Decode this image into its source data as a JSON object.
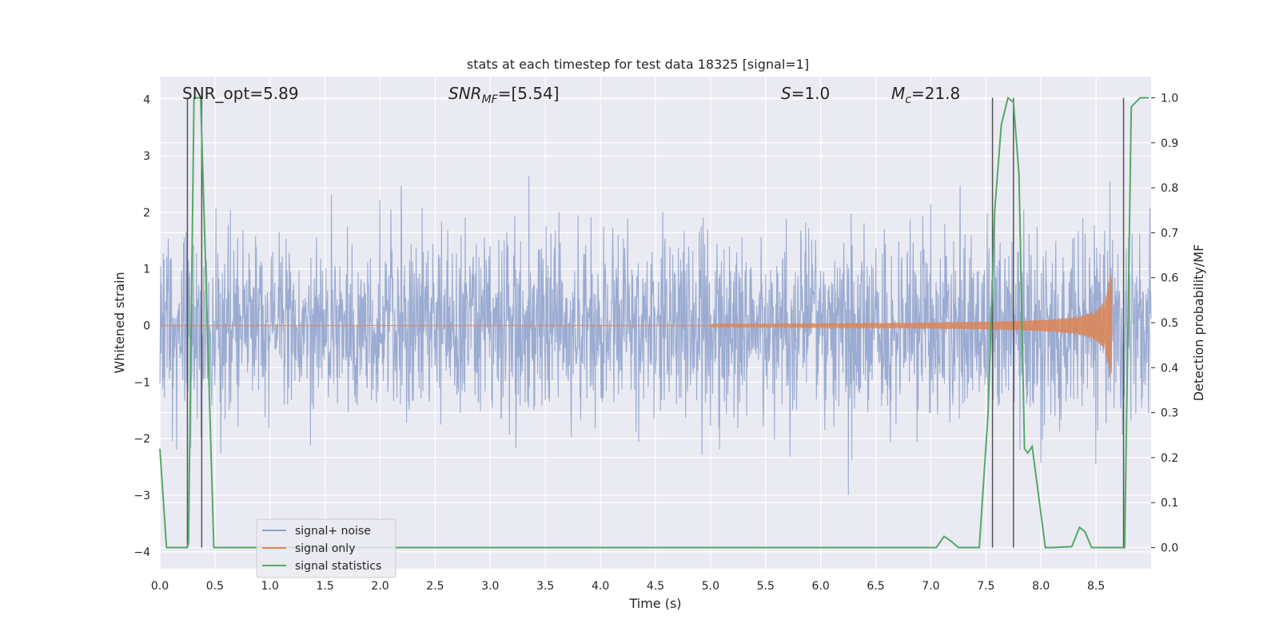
{
  "chart_data": {
    "type": "line",
    "title": "stats at each timestep for test data 18325 [signal=1]",
    "xlabel": "Time (s)",
    "ylabel_left": "Whitened strain",
    "ylabel_right": "Detection probability/MF",
    "xlim": [
      0,
      9.0
    ],
    "ylim_left": [
      -4.3,
      4.4
    ],
    "ylim_right": [
      -0.047,
      1.047
    ],
    "x_ticks": [
      0.0,
      0.5,
      1.0,
      1.5,
      2.0,
      2.5,
      3.0,
      3.5,
      4.0,
      4.5,
      5.0,
      5.5,
      6.0,
      6.5,
      7.0,
      7.5,
      8.0,
      8.5
    ],
    "x_tick_labels": [
      "0.0",
      "0.5",
      "1.0",
      "1.5",
      "2.0",
      "2.5",
      "3.0",
      "3.5",
      "4.0",
      "4.5",
      "5.0",
      "5.5",
      "6.0",
      "6.5",
      "7.0",
      "7.5",
      "8.0",
      "8.5"
    ],
    "y_left_ticks": [
      -4,
      -3,
      -2,
      -1,
      0,
      1,
      2,
      3,
      4
    ],
    "y_left_tick_labels": [
      "−4",
      "−3",
      "−2",
      "−1",
      "0",
      "1",
      "2",
      "3",
      "4"
    ],
    "y_right_ticks": [
      0.0,
      0.1,
      0.2,
      0.3,
      0.4,
      0.5,
      0.6,
      0.7,
      0.8,
      0.9,
      1.0
    ],
    "y_right_tick_labels": [
      "0.0",
      "0.1",
      "0.2",
      "0.3",
      "0.4",
      "0.5",
      "0.6",
      "0.7",
      "0.8",
      "0.9",
      "1.0"
    ],
    "annotations": {
      "snr_opt": "SNR_opt=5.89",
      "snr_mf_main": "SNR",
      "snr_mf_sub": "MF",
      "snr_mf_val": "=[5.54]",
      "s_main": "S",
      "s_val": "=1.0",
      "mc_main": "M",
      "mc_sub": "c",
      "mc_val": "=21.8"
    },
    "series": [
      {
        "name": "signal+ noise",
        "color": "#8da0cb",
        "description": "whitened noisy strain, approx std 0.75, spikes up to ~3.6, x from 0 to 9.0"
      },
      {
        "name": "signal only",
        "color": "#dd8452",
        "chirp": {
          "start": 5.0,
          "end": 8.65,
          "amp_start": 0.03,
          "amp_peak": 1.0
        }
      },
      {
        "name": "signal statistics",
        "color": "#55a868",
        "x": [
          0.0,
          0.06,
          0.25,
          0.26,
          0.31,
          0.37,
          0.49,
          0.9,
          7.05,
          7.12,
          7.18,
          7.25,
          7.44,
          7.52,
          7.58,
          7.64,
          7.7,
          7.75,
          7.8,
          7.85,
          7.88,
          7.92,
          8.04,
          8.1,
          8.28,
          8.35,
          8.4,
          8.46,
          8.7,
          8.76,
          8.82,
          8.9,
          8.98
        ],
        "y": [
          0.22,
          0.0,
          0.0,
          0.01,
          1.0,
          1.0,
          0.0,
          0.0,
          0.0,
          0.025,
          0.015,
          0.0,
          0.0,
          0.3,
          0.75,
          0.94,
          1.0,
          0.99,
          0.83,
          0.22,
          0.21,
          0.225,
          0.0,
          0.0,
          0.002,
          0.045,
          0.035,
          0.0,
          0.0,
          0.0,
          0.98,
          1.0,
          1.0
        ]
      }
    ],
    "vertical_markers": [
      {
        "x": 0.25,
        "y_from": 0.0,
        "y_to": 1.0
      },
      {
        "x": 0.38,
        "y_from": 0.0,
        "y_to": 1.0
      },
      {
        "x": 7.56,
        "y_from": 0.0,
        "y_to": 1.0
      },
      {
        "x": 7.75,
        "y_from": 0.0,
        "y_to": 1.0
      },
      {
        "x": 8.75,
        "y_from": 0.0,
        "y_to": 1.0
      }
    ],
    "legend": {
      "position": "lower-left",
      "entries": [
        "signal+ noise",
        "signal only",
        "signal statistics"
      ]
    }
  }
}
